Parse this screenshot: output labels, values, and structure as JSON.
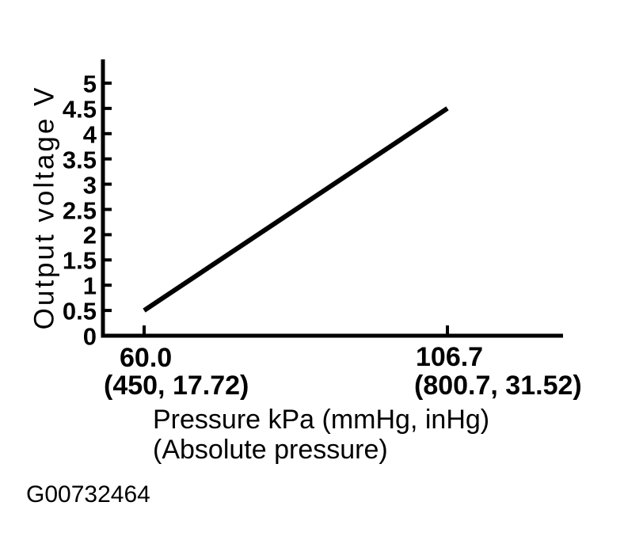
{
  "colors": {
    "ink": "#000000",
    "background": "#ffffff"
  },
  "figure_id": "G00732464",
  "chart_data": {
    "type": "line",
    "title": "",
    "ylabel": "Output voltage V",
    "xlabel_line1": "Pressure kPa (mmHg, inHg)",
    "xlabel_line2": "(Absolute pressure)",
    "y_ticks": [
      0,
      0.5,
      1,
      1.5,
      2,
      2.5,
      3,
      3.5,
      4,
      4.5,
      5
    ],
    "y_tick_labels": [
      "0",
      "0.5",
      "1",
      "1.5",
      "2",
      "2.5",
      "3",
      "3.5",
      "4",
      "4.5",
      "5"
    ],
    "x_ticks": [
      {
        "value_kpa": 60.0,
        "label": "60.0",
        "sublabel": "(450, 17.72)"
      },
      {
        "value_kpa": 106.7,
        "label": "106.7",
        "sublabel": "(800.7, 31.52)"
      }
    ],
    "series": [
      {
        "name": "sensor-output-line",
        "points": [
          {
            "x": 60.0,
            "y": 0.5
          },
          {
            "x": 106.7,
            "y": 4.5
          }
        ]
      }
    ],
    "xlim": [
      53.7,
      124.5
    ],
    "ylim": [
      0,
      5.45
    ],
    "grid": false,
    "legend": false
  }
}
